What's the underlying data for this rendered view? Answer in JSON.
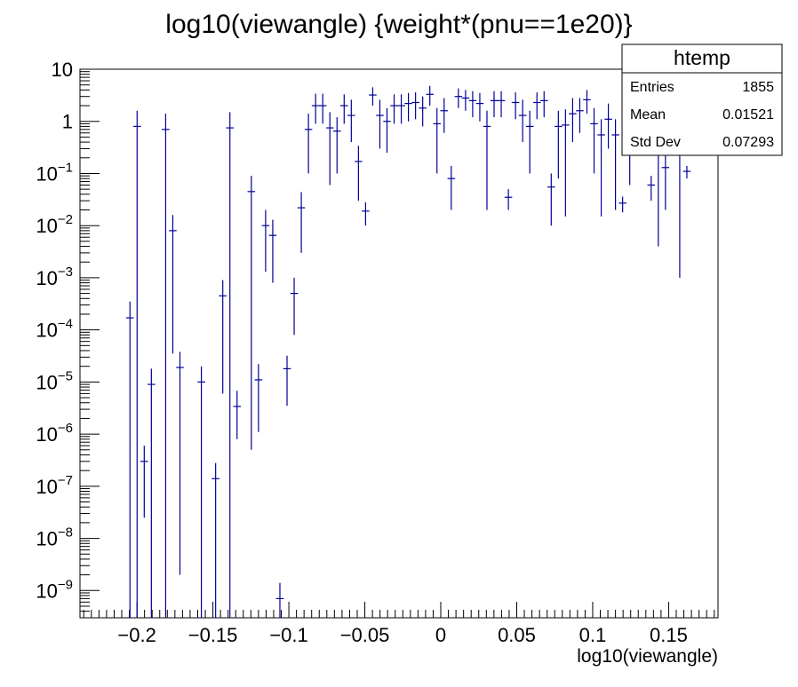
{
  "chart_data": {
    "type": "scatter",
    "title": "log10(viewangle) {weight*(pnu==1e20)}",
    "xlabel": "log10(viewangle)",
    "ylabel": "",
    "xlim": [
      -0.2375,
      0.1825
    ],
    "ylim": [
      3e-10,
      10
    ],
    "yscale": "log",
    "grid": false,
    "x_ticks": [
      {
        "value": -0.2,
        "label": "−0.2"
      },
      {
        "value": -0.15,
        "label": "−0.15"
      },
      {
        "value": -0.1,
        "label": "−0.1"
      },
      {
        "value": -0.05,
        "label": "−0.05"
      },
      {
        "value": 0,
        "label": "0"
      },
      {
        "value": 0.05,
        "label": "0.05"
      },
      {
        "value": 0.1,
        "label": "0.1"
      },
      {
        "value": 0.15,
        "label": "0.15"
      }
    ],
    "y_ticks": [
      {
        "value": 10,
        "base": "10",
        "exp": ""
      },
      {
        "value": 1,
        "base": "1",
        "exp": ""
      },
      {
        "value": 0.1,
        "base": "10",
        "exp": "−1"
      },
      {
        "value": 0.01,
        "base": "10",
        "exp": "−2"
      },
      {
        "value": 0.001,
        "base": "10",
        "exp": "−3"
      },
      {
        "value": 0.0001,
        "base": "10",
        "exp": "−4"
      },
      {
        "value": 1e-05,
        "base": "10",
        "exp": "−5"
      },
      {
        "value": 1e-06,
        "base": "10",
        "exp": "−6"
      },
      {
        "value": 1e-07,
        "base": "10",
        "exp": "−7"
      },
      {
        "value": 1e-08,
        "base": "10",
        "exp": "−8"
      },
      {
        "value": 1e-09,
        "base": "10",
        "exp": "−9"
      }
    ],
    "bin_half_width": 0.0025,
    "marker_color": "#000099",
    "points": [
      {
        "x": -0.2046,
        "y": 0.00017,
        "lo": 3e-10,
        "hi": 0.00035
      },
      {
        "x": -0.1999,
        "y": 0.8,
        "lo": 3e-10,
        "hi": 1.6
      },
      {
        "x": -0.1952,
        "y": 3e-07,
        "lo": 2.5e-08,
        "hi": 6e-07
      },
      {
        "x": -0.1905,
        "y": 9e-06,
        "lo": 3e-10,
        "hi": 1.8e-05
      },
      {
        "x": -0.1811,
        "y": 0.7,
        "lo": 3e-10,
        "hi": 1.4
      },
      {
        "x": -0.1764,
        "y": 0.008,
        "lo": 3.5e-05,
        "hi": 0.016
      },
      {
        "x": -0.1717,
        "y": 1.9e-05,
        "lo": 2e-09,
        "hi": 3.8e-05
      },
      {
        "x": -0.1576,
        "y": 1e-05,
        "lo": 3e-10,
        "hi": 2e-05
      },
      {
        "x": -0.1482,
        "y": 1.4e-07,
        "lo": 3e-10,
        "hi": 2.8e-07
      },
      {
        "x": -0.1435,
        "y": 0.00045,
        "lo": 6e-06,
        "hi": 0.0009
      },
      {
        "x": -0.1388,
        "y": 0.75,
        "lo": 3e-10,
        "hi": 1.5
      },
      {
        "x": -0.1341,
        "y": 3.4e-06,
        "lo": 8e-07,
        "hi": 6.8e-06
      },
      {
        "x": -0.1247,
        "y": 0.045,
        "lo": 5e-07,
        "hi": 0.09
      },
      {
        "x": -0.12,
        "y": 1.1e-05,
        "lo": 1.1e-06,
        "hi": 2.2e-05
      },
      {
        "x": -0.1153,
        "y": 0.01,
        "lo": 0.0013,
        "hi": 0.02
      },
      {
        "x": -0.1106,
        "y": 0.0065,
        "lo": 0.0008,
        "hi": 0.013
      },
      {
        "x": -0.1059,
        "y": 7e-10,
        "lo": 3e-10,
        "hi": 1.4e-09
      },
      {
        "x": -0.1012,
        "y": 1.8e-05,
        "lo": 3.5e-06,
        "hi": 3.2e-05
      },
      {
        "x": -0.0965,
        "y": 0.0005,
        "lo": 8e-05,
        "hi": 0.001
      },
      {
        "x": -0.0918,
        "y": 0.022,
        "lo": 0.003,
        "hi": 0.044
      },
      {
        "x": -0.0871,
        "y": 0.7,
        "lo": 0.1,
        "hi": 1.4
      },
      {
        "x": -0.0824,
        "y": 2,
        "lo": 0.9,
        "hi": 3.4
      },
      {
        "x": -0.0777,
        "y": 2,
        "lo": 0.9,
        "hi": 3.4
      },
      {
        "x": -0.073,
        "y": 0.75,
        "lo": 0.06,
        "hi": 1.5
      },
      {
        "x": -0.0683,
        "y": 0.65,
        "lo": 0.1,
        "hi": 1.2
      },
      {
        "x": -0.0636,
        "y": 2,
        "lo": 0.9,
        "hi": 3.3
      },
      {
        "x": -0.0589,
        "y": 1.3,
        "lo": 0.4,
        "hi": 2.6
      },
      {
        "x": -0.0542,
        "y": 0.17,
        "lo": 0.03,
        "hi": 0.34
      },
      {
        "x": -0.0495,
        "y": 0.019,
        "lo": 0.01,
        "hi": 0.028
      },
      {
        "x": -0.0448,
        "y": 3.2,
        "lo": 2,
        "hi": 4.5
      },
      {
        "x": -0.0401,
        "y": 1.3,
        "lo": 0.3,
        "hi": 2.6
      },
      {
        "x": -0.0354,
        "y": 1,
        "lo": 0.25,
        "hi": 1.8
      },
      {
        "x": -0.0307,
        "y": 2,
        "lo": 0.9,
        "hi": 3.3
      },
      {
        "x": -0.026,
        "y": 2,
        "lo": 0.9,
        "hi": 3.3
      },
      {
        "x": -0.0213,
        "y": 2.2,
        "lo": 1,
        "hi": 3.5
      },
      {
        "x": -0.0166,
        "y": 2.3,
        "lo": 1.1,
        "hi": 3.6
      },
      {
        "x": -0.0119,
        "y": 1.8,
        "lo": 0.8,
        "hi": 3
      },
      {
        "x": -0.0072,
        "y": 3.3,
        "lo": 2,
        "hi": 4.8
      },
      {
        "x": -0.0025,
        "y": 0.9,
        "lo": 0.1,
        "hi": 1.8
      },
      {
        "x": 0.0022,
        "y": 1.6,
        "lo": 0.6,
        "hi": 2.8
      },
      {
        "x": 0.0069,
        "y": 0.08,
        "lo": 0.02,
        "hi": 0.14
      },
      {
        "x": 0.0116,
        "y": 3,
        "lo": 1.8,
        "hi": 4.3
      },
      {
        "x": 0.0163,
        "y": 2.8,
        "lo": 1.6,
        "hi": 4
      },
      {
        "x": 0.021,
        "y": 2.5,
        "lo": 1.2,
        "hi": 3.8
      },
      {
        "x": 0.0257,
        "y": 2.2,
        "lo": 1,
        "hi": 3.5
      },
      {
        "x": 0.0304,
        "y": 0.8,
        "lo": 0.02,
        "hi": 1.6
      },
      {
        "x": 0.0351,
        "y": 2.5,
        "lo": 1.2,
        "hi": 3.8
      },
      {
        "x": 0.0398,
        "y": 2.5,
        "lo": 1.2,
        "hi": 3.8
      },
      {
        "x": 0.0445,
        "y": 0.035,
        "lo": 0.02,
        "hi": 0.05
      },
      {
        "x": 0.0492,
        "y": 2.3,
        "lo": 1.1,
        "hi": 3.6
      },
      {
        "x": 0.0539,
        "y": 1.3,
        "lo": 0.4,
        "hi": 2.6
      },
      {
        "x": 0.0586,
        "y": 0.8,
        "lo": 0.1,
        "hi": 1.6
      },
      {
        "x": 0.0633,
        "y": 2.3,
        "lo": 1.1,
        "hi": 3.6
      },
      {
        "x": 0.068,
        "y": 2.5,
        "lo": 1.2,
        "hi": 3.8
      },
      {
        "x": 0.0727,
        "y": 0.055,
        "lo": 0.01,
        "hi": 0.1
      },
      {
        "x": 0.0774,
        "y": 0.8,
        "lo": 0.08,
        "hi": 1.6
      },
      {
        "x": 0.0821,
        "y": 0.85,
        "lo": 0.015,
        "hi": 1.7
      },
      {
        "x": 0.0868,
        "y": 1.4,
        "lo": 0.4,
        "hi": 2.8
      },
      {
        "x": 0.0915,
        "y": 1.6,
        "lo": 0.6,
        "hi": 2.8
      },
      {
        "x": 0.0962,
        "y": 2.6,
        "lo": 1.4,
        "hi": 4
      },
      {
        "x": 0.1009,
        "y": 0.9,
        "lo": 0.1,
        "hi": 1.8
      },
      {
        "x": 0.1056,
        "y": 0.55,
        "lo": 0.015,
        "hi": 1.1
      },
      {
        "x": 0.1103,
        "y": 1.1,
        "lo": 0.3,
        "hi": 2.2
      },
      {
        "x": 0.115,
        "y": 0.55,
        "lo": 0.02,
        "hi": 1.1
      },
      {
        "x": 0.1197,
        "y": 0.027,
        "lo": 0.018,
        "hi": 0.036
      },
      {
        "x": 0.1244,
        "y": 0.8,
        "lo": 0.06,
        "hi": 1.6
      },
      {
        "x": 0.1291,
        "y": 1.5,
        "lo": 0.5,
        "hi": 2.8
      },
      {
        "x": 0.1338,
        "y": 2.8,
        "lo": 1.5,
        "hi": 4.2
      },
      {
        "x": 0.1385,
        "y": 0.06,
        "lo": 0.03,
        "hi": 0.09
      },
      {
        "x": 0.1432,
        "y": 0.6,
        "lo": 0.004,
        "hi": 1.2
      },
      {
        "x": 0.1479,
        "y": 0.13,
        "lo": 0.02,
        "hi": 0.3
      },
      {
        "x": 0.1573,
        "y": 0.9,
        "lo": 0.001,
        "hi": 1.8
      },
      {
        "x": 0.162,
        "y": 0.11,
        "lo": 0.08,
        "hi": 0.14
      }
    ]
  },
  "stats_box": {
    "title": "htemp",
    "rows": [
      {
        "label": "Entries",
        "value": "1855"
      },
      {
        "label": "Mean",
        "value": "0.01521"
      },
      {
        "label": "Std Dev",
        "value": "0.07293"
      }
    ]
  }
}
